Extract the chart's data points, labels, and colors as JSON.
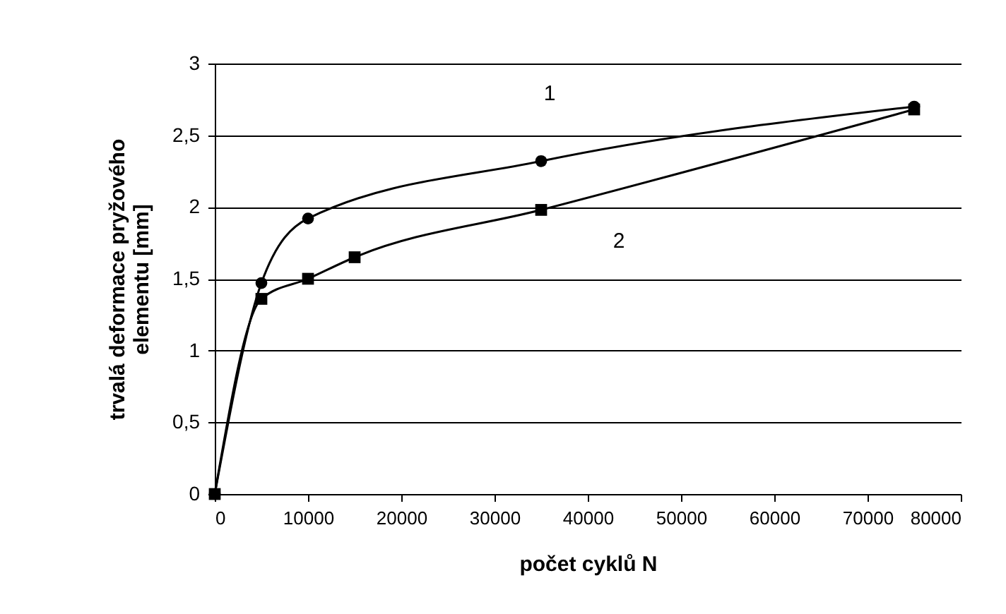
{
  "chart_data": {
    "type": "line",
    "xlabel": "počet cyklů N",
    "ylabel": "trvalá deformace pryžového\nelementu [mm]",
    "xlim": [
      0,
      80000
    ],
    "xticks": [
      0,
      10000,
      20000,
      30000,
      40000,
      50000,
      60000,
      70000,
      80000
    ],
    "ylim": [
      0,
      3
    ],
    "yticks": [
      0,
      {
        "value": 0.5,
        "label": "0,5"
      },
      1,
      {
        "value": 1.5,
        "label": "1,5"
      },
      2,
      {
        "value": 2.5,
        "label": "2,5"
      },
      3
    ],
    "grid": "y",
    "legend": false,
    "line_style": "solid",
    "series": [
      {
        "name": "1",
        "color": "#000000",
        "marker": "circle",
        "x": [
          0,
          5000,
          10000,
          35000,
          75000
        ],
        "values": [
          0,
          1.47,
          1.92,
          2.32,
          2.7
        ]
      },
      {
        "name": "2",
        "color": "#000000",
        "marker": "square",
        "x": [
          0,
          5000,
          10000,
          15000,
          35000,
          75000
        ],
        "values": [
          0,
          1.36,
          1.5,
          1.65,
          1.98,
          2.68
        ]
      }
    ]
  }
}
